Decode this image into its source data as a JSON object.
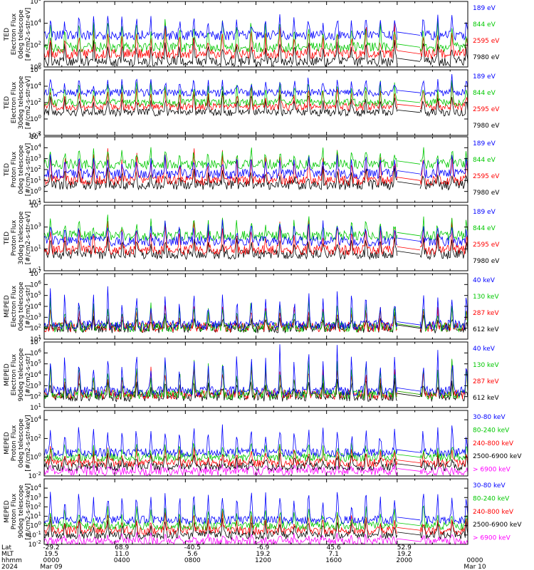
{
  "chart_data": {
    "type": "line",
    "x_ticks": [
      "0000",
      "0400",
      "0800",
      "1200",
      "1600",
      "2000",
      "0000"
    ],
    "bottom_axis": {
      "row_labels": [
        "Lat",
        "MLT",
        "hhmm",
        "2024"
      ],
      "lat": [
        "-29.2",
        "68.9",
        "-40.5",
        "-6.9",
        "45.6",
        "52.9",
        ""
      ],
      "mlt": [
        "19.5",
        "11.0",
        "5.6",
        "19.2",
        "7.1",
        "19.2",
        ""
      ],
      "hhmm": [
        "0000",
        "0400",
        "0800",
        "1200",
        "1600",
        "2000",
        "0000"
      ],
      "dates": [
        "Mar 09",
        "Mar 10"
      ]
    },
    "data_gap_hours": [
      20.0,
      21.3
    ],
    "panels": [
      {
        "ylabel": [
          "TED",
          "Electron Flux",
          "0deg telescope",
          "[#/cm2-s-str-eV]"
        ],
        "y_exponents": [
          6,
          4,
          2,
          0
        ],
        "ylim_log10": [
          0,
          6
        ],
        "series": [
          {
            "name": "7980 eV",
            "color": "#000000",
            "base": 0.5,
            "peak": 2.4
          },
          {
            "name": "2595 eV",
            "color": "#ff0000",
            "base": 1.2,
            "peak": 3.5
          },
          {
            "name": "844 eV",
            "color": "#00c800",
            "base": 1.8,
            "peak": 4.3
          },
          {
            "name": "189 eV",
            "color": "#0000ff",
            "base": 2.9,
            "peak": 4.8
          }
        ]
      },
      {
        "ylabel": [
          "TED",
          "Electron Flux",
          "30deg telescope",
          "[#/cm2-s-str-eV]"
        ],
        "y_exponents": [
          6,
          4,
          2,
          0,
          -2
        ],
        "ylim_log10": [
          -2,
          6
        ],
        "series": [
          {
            "name": "7980 eV",
            "color": "#000000",
            "base": 0.8,
            "peak": 3.0
          },
          {
            "name": "2595 eV",
            "color": "#ff0000",
            "base": 1.5,
            "peak": 4.0
          },
          {
            "name": "844 eV",
            "color": "#00c800",
            "base": 2.0,
            "peak": 4.8
          },
          {
            "name": "189 eV",
            "color": "#0000ff",
            "base": 3.2,
            "peak": 5.0
          }
        ]
      },
      {
        "ylabel": [
          "TED",
          "Proton Flux",
          "0deg telescope",
          "[#/cm2-s-str-eV]"
        ],
        "y_exponents": [
          5,
          4,
          3,
          2,
          1,
          0,
          -1
        ],
        "ylim_log10": [
          -1,
          5
        ],
        "series": [
          {
            "name": "7980 eV",
            "color": "#000000",
            "base": 0.6,
            "peak": 2.0
          },
          {
            "name": "2595 eV",
            "color": "#ff0000",
            "base": 1.0,
            "peak": 3.6
          },
          {
            "name": "844 eV",
            "color": "#00c800",
            "base": 2.5,
            "peak": 4.0
          },
          {
            "name": "189 eV",
            "color": "#0000ff",
            "base": 1.6,
            "peak": 3.2
          }
        ]
      },
      {
        "ylabel": [
          "TED",
          "Proton Flux",
          "30deg telescope",
          "[#/cm2-s-str-eV]"
        ],
        "y_exponents": [
          5,
          3,
          1,
          -1
        ],
        "ylim_log10": [
          -1,
          5
        ],
        "series": [
          {
            "name": "7980 eV",
            "color": "#000000",
            "base": 0.5,
            "peak": 2.0
          },
          {
            "name": "2595 eV",
            "color": "#ff0000",
            "base": 0.9,
            "peak": 3.4
          },
          {
            "name": "844 eV",
            "color": "#00c800",
            "base": 2.2,
            "peak": 3.8
          },
          {
            "name": "189 eV",
            "color": "#0000ff",
            "base": 1.7,
            "peak": 3.3
          }
        ]
      },
      {
        "ylabel": [
          "MEPED",
          "Electron Flux",
          "0deg telescope",
          "[#/cm2-s-str]"
        ],
        "y_exponents": [
          7,
          6,
          5,
          4,
          3,
          2,
          1
        ],
        "ylim_log10": [
          1,
          7
        ],
        "series": [
          {
            "name": "612 keV",
            "color": "#000000",
            "base": 2.0,
            "peak": 3.0
          },
          {
            "name": "287 keV",
            "color": "#ff0000",
            "base": 2.1,
            "peak": 4.0
          },
          {
            "name": "130 keV",
            "color": "#00c800",
            "base": 2.1,
            "peak": 4.5
          },
          {
            "name": "40 keV",
            "color": "#0000ff",
            "base": 2.3,
            "peak": 5.5
          }
        ]
      },
      {
        "ylabel": [
          "MEPED",
          "Electron Flux",
          "90deg telescope",
          "[#/cm2-s-str]"
        ],
        "y_exponents": [
          7,
          6,
          5,
          4,
          3,
          2,
          1
        ],
        "ylim_log10": [
          1,
          7
        ],
        "series": [
          {
            "name": "612 keV",
            "color": "#000000",
            "base": 2.0,
            "peak": 3.5
          },
          {
            "name": "287 keV",
            "color": "#ff0000",
            "base": 2.2,
            "peak": 4.8
          },
          {
            "name": "130 keV",
            "color": "#00c800",
            "base": 2.2,
            "peak": 5.2
          },
          {
            "name": "40 keV",
            "color": "#0000ff",
            "base": 2.5,
            "peak": 6.2
          }
        ]
      },
      {
        "ylabel": [
          "MEPED",
          "Proton Flux",
          "0deg telescope",
          "[#/cm2-s-str-keV]"
        ],
        "y_exponents": [
          4,
          2,
          0,
          -2
        ],
        "ylim_log10": [
          -2,
          5
        ],
        "series": [
          {
            "name": "> 6900 keV",
            "color": "#ff00ff",
            "base": -1.5,
            "peak": -1.0
          },
          {
            "name": "2500-6900 keV",
            "color": "#000000",
            "base": -1.0,
            "peak": 0.5
          },
          {
            "name": "240-800 keV",
            "color": "#ff0000",
            "base": -0.6,
            "peak": 1.0
          },
          {
            "name": "80-240 keV",
            "color": "#00c800",
            "base": 0.0,
            "peak": 1.5
          },
          {
            "name": "30-80 keV",
            "color": "#0000ff",
            "base": 0.5,
            "peak": 3.5
          }
        ]
      },
      {
        "ylabel": [
          "MEPED",
          "Proton Flux",
          "90deg telescope",
          "[#/cm2-s-str-keV]"
        ],
        "y_exponents": [
          4,
          3,
          2,
          1,
          0,
          -1,
          -2
        ],
        "ylim_log10": [
          -2,
          5
        ],
        "series": [
          {
            "name": "> 6900 keV",
            "color": "#ff00ff",
            "base": -1.7,
            "peak": -1.0
          },
          {
            "name": "2500-6900 keV",
            "color": "#000000",
            "base": -1.0,
            "peak": 0.8
          },
          {
            "name": "240-800 keV",
            "color": "#ff0000",
            "base": -0.5,
            "peak": 1.2
          },
          {
            "name": "80-240 keV",
            "color": "#00c800",
            "base": 0.0,
            "peak": 2.0
          },
          {
            "name": "30-80 keV",
            "color": "#0000ff",
            "base": 0.6,
            "peak": 3.8
          }
        ]
      }
    ]
  }
}
